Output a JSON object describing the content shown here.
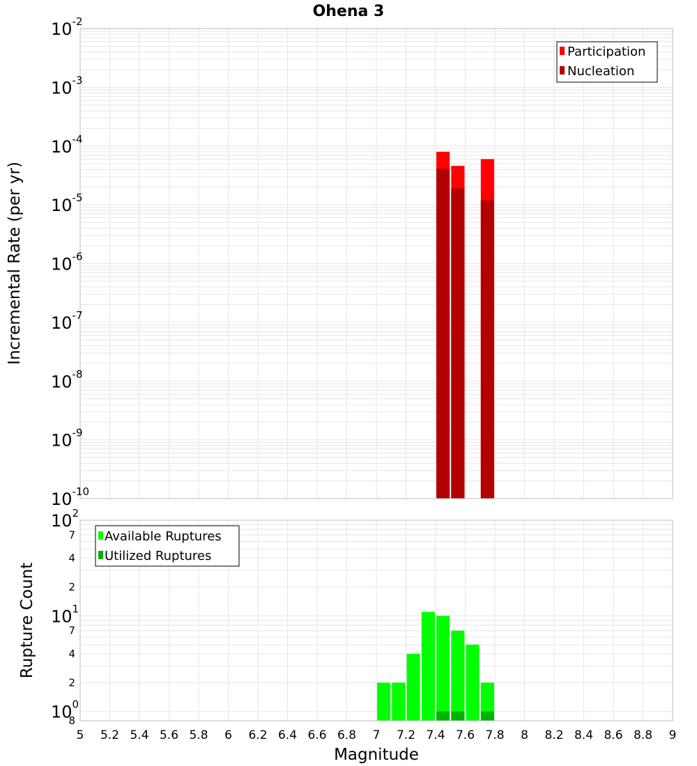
{
  "colors": {
    "participation": "#ff0000",
    "nucleation": "#b30000",
    "available": "#00ff00",
    "utilized": "#00b300"
  },
  "chart_data": [
    {
      "id": "rate",
      "type": "bar",
      "title": "Ohena 3",
      "xlabel": "",
      "ylabel": "Incremental Rate (per yr)",
      "yscale": "log",
      "ylim_exp": [
        -10,
        -2
      ],
      "xlim": [
        5,
        9
      ],
      "y_ticks": [
        {
          "base": "10",
          "exp": "-2"
        },
        {
          "base": "10",
          "exp": "-3"
        },
        {
          "base": "10",
          "exp": "-4"
        },
        {
          "base": "10",
          "exp": "-5"
        },
        {
          "base": "10",
          "exp": "-6"
        },
        {
          "base": "10",
          "exp": "-7"
        },
        {
          "base": "10",
          "exp": "-8"
        },
        {
          "base": "10",
          "exp": "-9"
        },
        {
          "base": "10",
          "exp": "-10"
        }
      ],
      "legend_position": "top-right",
      "series": [
        {
          "name": "Participation",
          "color_key": "participation",
          "points": [
            {
              "x": 7.45,
              "y": 8e-05
            },
            {
              "x": 7.55,
              "y": 4.6e-05
            },
            {
              "x": 7.75,
              "y": 6e-05
            }
          ]
        },
        {
          "name": "Nucleation",
          "color_key": "nucleation",
          "points": [
            {
              "x": 7.45,
              "y": 4.1e-05
            },
            {
              "x": 7.55,
              "y": 1.9e-05
            },
            {
              "x": 7.75,
              "y": 1.2e-05
            }
          ]
        }
      ]
    },
    {
      "id": "count",
      "type": "bar",
      "title": "",
      "xlabel": "Magnitude",
      "ylabel": "Rupture Count",
      "yscale": "log",
      "ylim": [
        0.8,
        100
      ],
      "xlim": [
        5,
        9
      ],
      "x_ticks": [
        "5",
        "5.2",
        "5.4",
        "5.6",
        "5.8",
        "6",
        "6.2",
        "6.4",
        "6.6",
        "6.8",
        "7",
        "7.2",
        "7.4",
        "7.6",
        "7.8",
        "8",
        "8.2",
        "8.4",
        "8.6",
        "8.8",
        "9"
      ],
      "y_major_ticks": [
        {
          "base": "10",
          "exp": "2",
          "value": 100
        },
        {
          "base": "10",
          "exp": "1",
          "value": 10
        },
        {
          "base": "10",
          "exp": "0",
          "value": 1
        }
      ],
      "y_minor_ticks": [
        {
          "label": "7",
          "value": 70
        },
        {
          "label": "4",
          "value": 40
        },
        {
          "label": "2",
          "value": 20
        },
        {
          "label": "7",
          "value": 7
        },
        {
          "label": "4",
          "value": 4
        },
        {
          "label": "2",
          "value": 2
        },
        {
          "label": "8",
          "value": 0.8
        }
      ],
      "legend_position": "top-left",
      "series": [
        {
          "name": "Available Ruptures",
          "color_key": "available",
          "points": [
            {
              "x": 7.05,
              "y": 2
            },
            {
              "x": 7.15,
              "y": 2
            },
            {
              "x": 7.25,
              "y": 4
            },
            {
              "x": 7.35,
              "y": 11
            },
            {
              "x": 7.45,
              "y": 10
            },
            {
              "x": 7.55,
              "y": 7
            },
            {
              "x": 7.65,
              "y": 5
            },
            {
              "x": 7.75,
              "y": 2
            }
          ]
        },
        {
          "name": "Utilized Ruptures",
          "color_key": "utilized",
          "points": [
            {
              "x": 7.45,
              "y": 1
            },
            {
              "x": 7.55,
              "y": 1
            },
            {
              "x": 7.75,
              "y": 1
            }
          ]
        }
      ]
    }
  ]
}
